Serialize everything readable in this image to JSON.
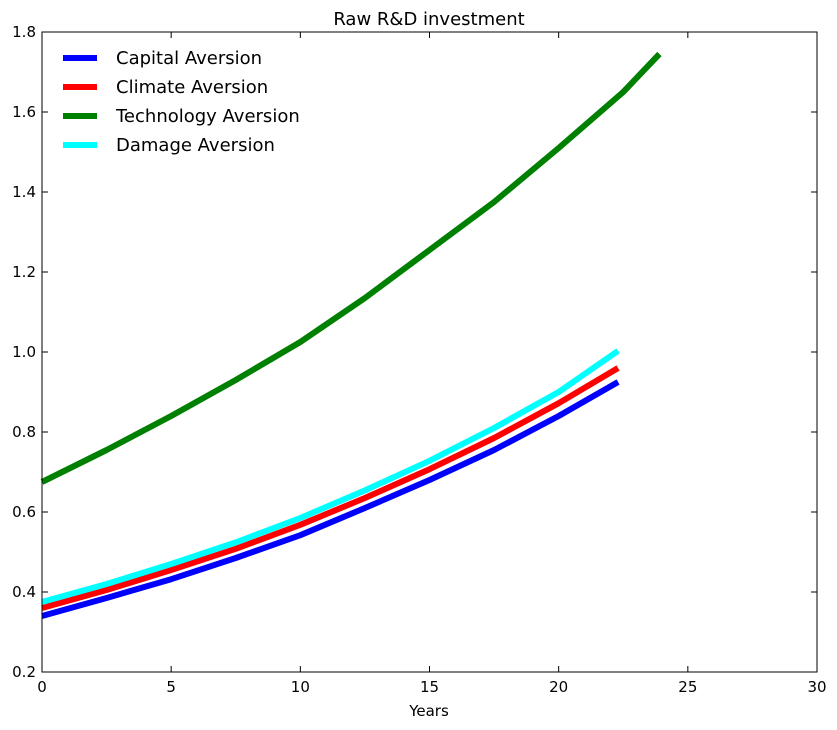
{
  "chart_data": {
    "type": "line",
    "title": "Raw R&D investment",
    "xlabel": "Years",
    "ylabel": "",
    "xlim": [
      0,
      30
    ],
    "ylim": [
      0.2,
      1.8
    ],
    "xticks": [
      "0",
      "5",
      "10",
      "15",
      "20",
      "25",
      "30"
    ],
    "yticks": [
      "0.2",
      "0.4",
      "0.6",
      "0.8",
      "1.0",
      "1.2",
      "1.4",
      "1.6",
      "1.8"
    ],
    "grid": false,
    "legend_position": "top-left",
    "series": [
      {
        "name": "Capital Aversion",
        "color": "#0000ff",
        "x": [
          0,
          2.5,
          5,
          7.5,
          10,
          12.5,
          15,
          17.5,
          20,
          22.3
        ],
        "y": [
          0.34,
          0.385,
          0.432,
          0.485,
          0.542,
          0.61,
          0.68,
          0.755,
          0.84,
          0.925
        ]
      },
      {
        "name": "Climate Aversion",
        "color": "#ff0000",
        "x": [
          0,
          2.5,
          5,
          7.5,
          10,
          12.5,
          15,
          17.5,
          20,
          22.3
        ],
        "y": [
          0.36,
          0.405,
          0.455,
          0.508,
          0.568,
          0.635,
          0.707,
          0.785,
          0.872,
          0.96
        ]
      },
      {
        "name": "Technology Aversion",
        "color": "#008000",
        "x": [
          0,
          2.5,
          5,
          7.5,
          10,
          12.5,
          15,
          17.5,
          20,
          22.5,
          23.9
        ],
        "y": [
          0.675,
          0.755,
          0.84,
          0.93,
          1.025,
          1.135,
          1.255,
          1.375,
          1.51,
          1.65,
          1.745
        ]
      },
      {
        "name": "Damage Aversion",
        "color": "#00ffff",
        "x": [
          0,
          2.5,
          5,
          7.5,
          10,
          12.5,
          15,
          17.5,
          20,
          22.3
        ],
        "y": [
          0.375,
          0.42,
          0.47,
          0.524,
          0.585,
          0.654,
          0.728,
          0.81,
          0.9,
          1.003
        ]
      }
    ]
  }
}
